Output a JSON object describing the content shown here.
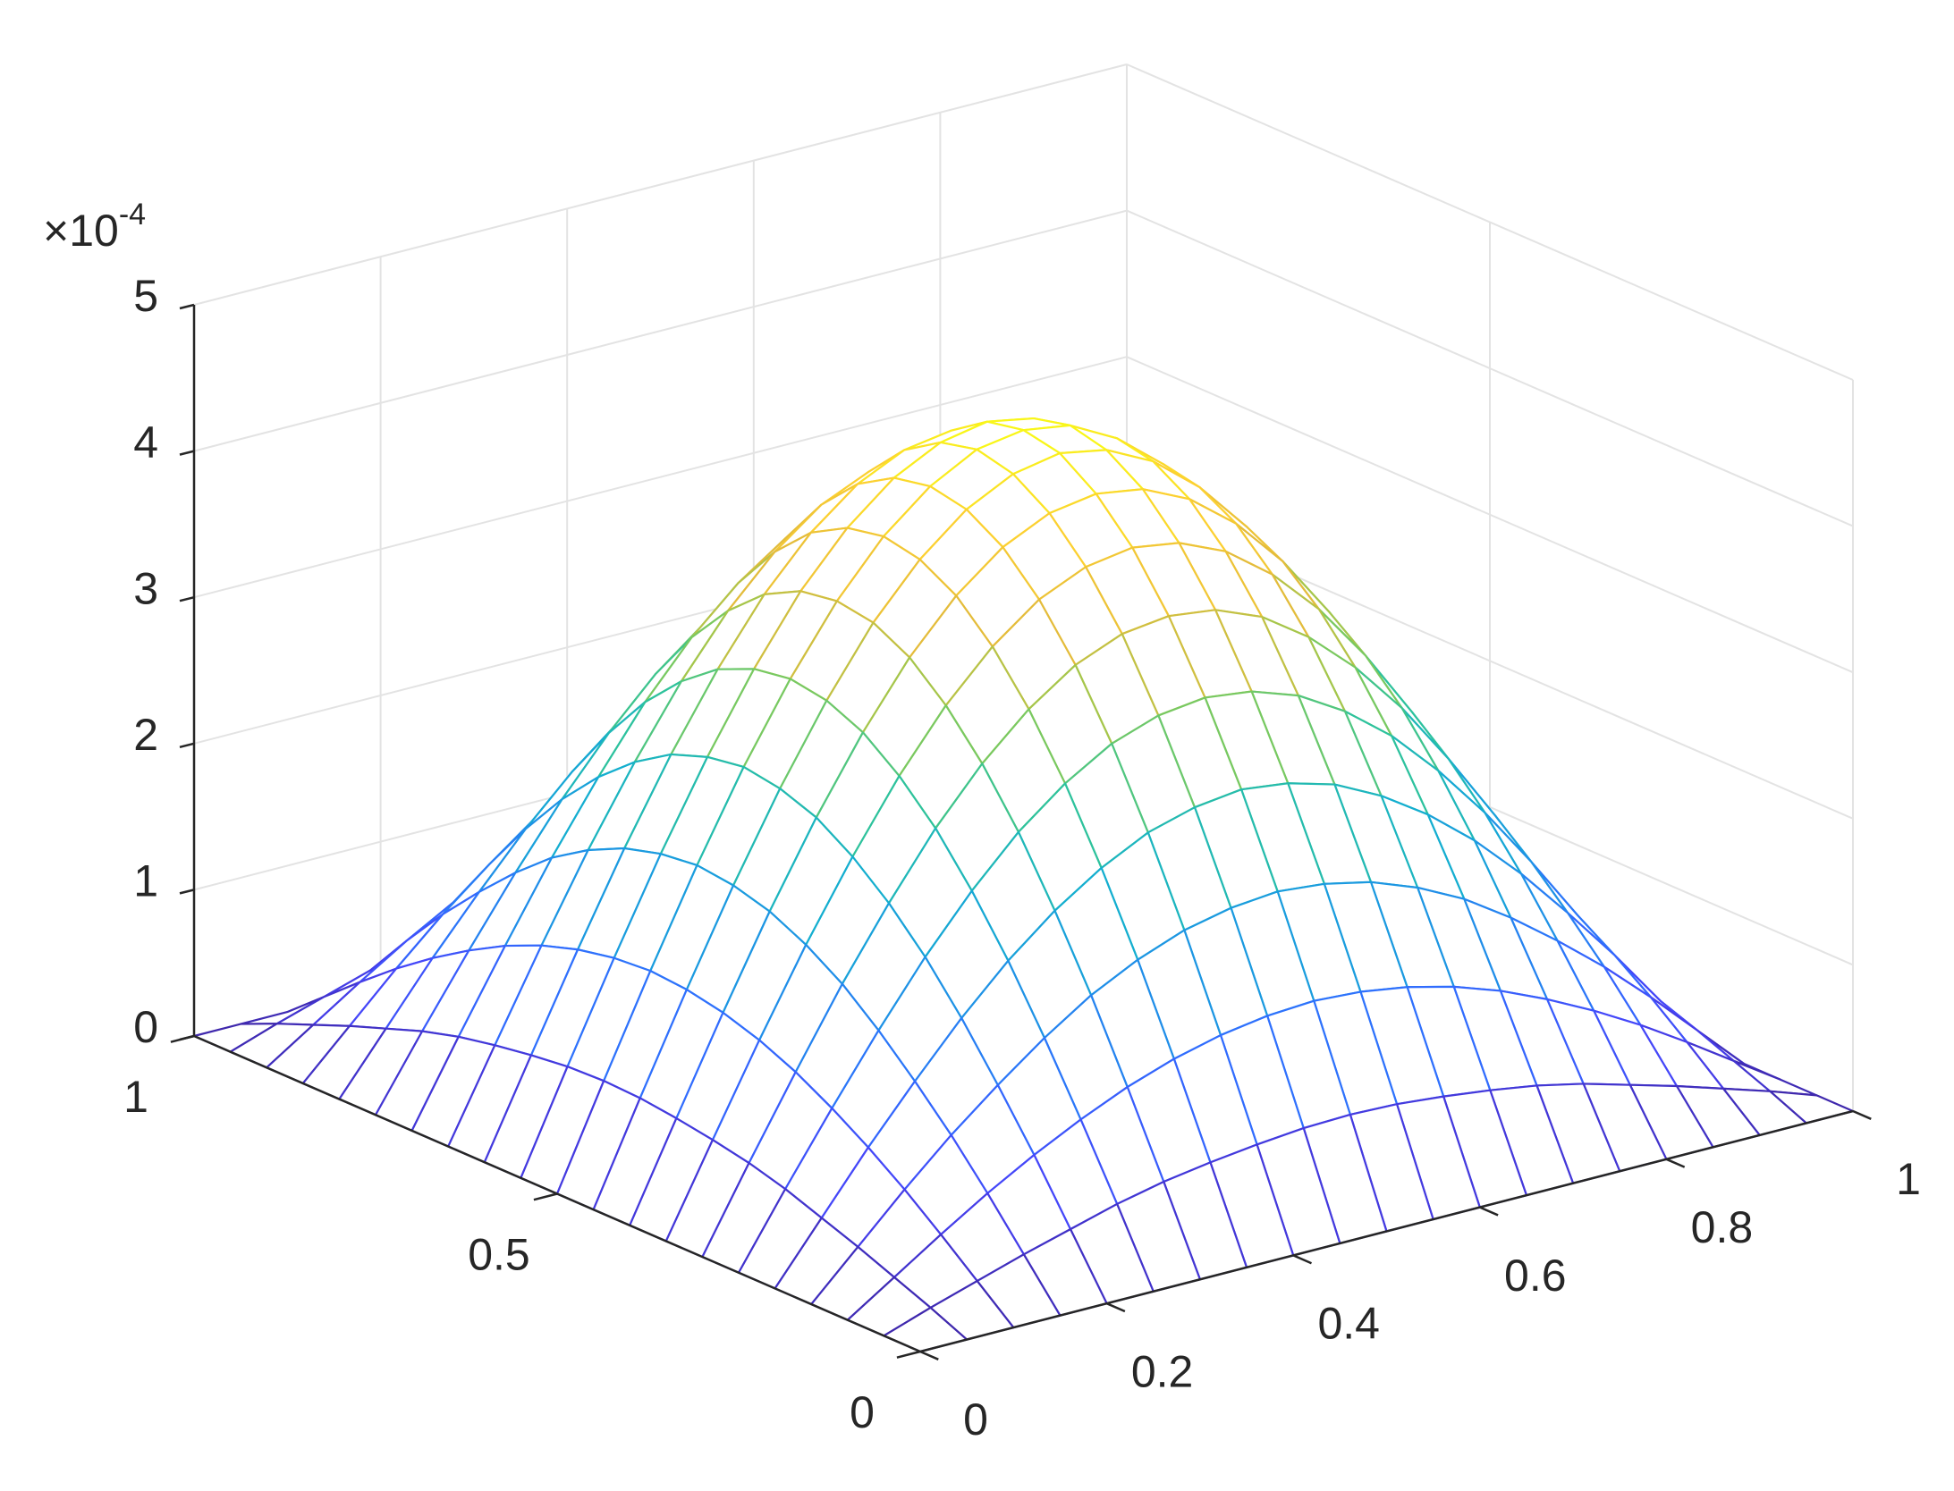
{
  "chart_data": {
    "type": "surface",
    "x": [
      0,
      0.05,
      0.1,
      0.15,
      0.2,
      0.25,
      0.3,
      0.35,
      0.4,
      0.45,
      0.5,
      0.55,
      0.6,
      0.65,
      0.7,
      0.75,
      0.8,
      0.85,
      0.9,
      0.95,
      1
    ],
    "y": [
      0,
      0.05,
      0.1,
      0.15,
      0.2,
      0.25,
      0.3,
      0.35,
      0.4,
      0.45,
      0.5,
      0.55,
      0.6,
      0.65,
      0.7,
      0.75,
      0.8,
      0.85,
      0.9,
      0.95,
      1
    ],
    "z": [
      [
        0,
        0,
        0,
        0,
        0,
        0,
        0,
        0,
        0,
        0,
        0,
        0,
        0,
        0,
        0,
        0,
        0,
        0,
        0,
        0,
        0
      ],
      [
        0,
        0.11,
        0.21,
        0.31,
        0.4,
        0.49,
        0.56,
        0.61,
        0.65,
        0.68,
        0.69,
        0.68,
        0.65,
        0.61,
        0.56,
        0.49,
        0.4,
        0.31,
        0.21,
        0.11,
        0
      ],
      [
        0,
        0.21,
        0.42,
        0.62,
        0.8,
        0.96,
        1.1,
        1.21,
        1.29,
        1.34,
        1.36,
        1.34,
        1.29,
        1.21,
        1.1,
        0.96,
        0.8,
        0.62,
        0.42,
        0.21,
        0
      ],
      [
        0,
        0.31,
        0.62,
        0.91,
        1.17,
        1.41,
        1.62,
        1.78,
        1.9,
        1.97,
        2,
        1.97,
        1.9,
        1.78,
        1.62,
        1.41,
        1.17,
        0.91,
        0.62,
        0.31,
        0
      ],
      [
        0,
        0.4,
        0.8,
        1.17,
        1.52,
        1.83,
        2.09,
        2.3,
        2.46,
        2.55,
        2.59,
        2.55,
        2.46,
        2.3,
        2.09,
        1.83,
        1.52,
        1.17,
        0.8,
        0.4,
        0
      ],
      [
        0,
        0.49,
        0.96,
        1.41,
        1.83,
        2.2,
        2.52,
        2.77,
        2.96,
        3.07,
        3.11,
        3.07,
        2.96,
        2.77,
        2.52,
        2.2,
        1.83,
        1.41,
        0.96,
        0.49,
        0
      ],
      [
        0,
        0.56,
        1.1,
        1.62,
        2.09,
        2.52,
        2.88,
        3.17,
        3.39,
        3.52,
        3.56,
        3.52,
        3.39,
        3.17,
        2.88,
        2.52,
        2.09,
        1.62,
        1.1,
        0.56,
        0
      ],
      [
        0,
        0.61,
        1.21,
        1.78,
        2.3,
        2.77,
        3.17,
        3.49,
        3.73,
        3.87,
        3.92,
        3.87,
        3.73,
        3.49,
        3.17,
        2.77,
        2.3,
        1.78,
        1.21,
        0.61,
        0
      ],
      [
        0,
        0.65,
        1.29,
        1.9,
        2.46,
        2.96,
        3.39,
        3.73,
        3.98,
        4.13,
        4.18,
        4.13,
        3.98,
        3.73,
        3.39,
        2.96,
        2.46,
        1.9,
        1.29,
        0.65,
        0
      ],
      [
        0,
        0.68,
        1.34,
        1.97,
        2.55,
        3.07,
        3.52,
        3.87,
        4.13,
        4.29,
        4.35,
        4.29,
        4.13,
        3.87,
        3.52,
        3.07,
        2.55,
        1.97,
        1.34,
        0.68,
        0
      ],
      [
        0,
        0.69,
        1.36,
        2,
        2.59,
        3.11,
        3.56,
        3.92,
        4.18,
        4.35,
        4.4,
        4.35,
        4.18,
        3.92,
        3.56,
        3.11,
        2.59,
        2,
        1.36,
        0.69,
        0
      ],
      [
        0,
        0.68,
        1.34,
        1.97,
        2.55,
        3.07,
        3.52,
        3.87,
        4.13,
        4.29,
        4.35,
        4.29,
        4.13,
        3.87,
        3.52,
        3.07,
        2.55,
        1.97,
        1.34,
        0.68,
        0
      ],
      [
        0,
        0.65,
        1.29,
        1.9,
        2.46,
        2.96,
        3.39,
        3.73,
        3.98,
        4.13,
        4.18,
        4.13,
        3.98,
        3.73,
        3.39,
        2.96,
        2.46,
        1.9,
        1.29,
        0.65,
        0
      ],
      [
        0,
        0.61,
        1.21,
        1.78,
        2.3,
        2.77,
        3.17,
        3.49,
        3.73,
        3.87,
        3.92,
        3.87,
        3.73,
        3.49,
        3.17,
        2.77,
        2.3,
        1.78,
        1.21,
        0.61,
        0
      ],
      [
        0,
        0.56,
        1.1,
        1.62,
        2.09,
        2.52,
        2.88,
        3.17,
        3.39,
        3.52,
        3.56,
        3.52,
        3.39,
        3.17,
        2.88,
        2.52,
        2.09,
        1.62,
        1.1,
        0.56,
        0
      ],
      [
        0,
        0.49,
        0.96,
        1.41,
        1.83,
        2.2,
        2.52,
        2.77,
        2.96,
        3.07,
        3.11,
        3.07,
        2.96,
        2.77,
        2.52,
        2.2,
        1.83,
        1.41,
        0.96,
        0.49,
        0
      ],
      [
        0,
        0.4,
        0.8,
        1.17,
        1.52,
        1.83,
        2.09,
        2.3,
        2.46,
        2.55,
        2.59,
        2.55,
        2.46,
        2.3,
        2.09,
        1.83,
        1.52,
        1.17,
        0.8,
        0.4,
        0
      ],
      [
        0,
        0.31,
        0.62,
        0.91,
        1.17,
        1.41,
        1.62,
        1.78,
        1.9,
        1.97,
        2,
        1.97,
        1.9,
        1.78,
        1.62,
        1.41,
        1.17,
        0.91,
        0.62,
        0.31,
        0
      ],
      [
        0,
        0.21,
        0.42,
        0.62,
        0.8,
        0.96,
        1.1,
        1.21,
        1.29,
        1.34,
        1.36,
        1.34,
        1.29,
        1.21,
        1.1,
        0.96,
        0.8,
        0.62,
        0.42,
        0.21,
        0
      ],
      [
        0,
        0.11,
        0.21,
        0.31,
        0.4,
        0.49,
        0.56,
        0.61,
        0.65,
        0.68,
        0.69,
        0.68,
        0.65,
        0.61,
        0.56,
        0.49,
        0.4,
        0.31,
        0.21,
        0.11,
        0
      ],
      [
        0,
        0,
        0,
        0,
        0,
        0,
        0,
        0,
        0,
        0,
        0,
        0,
        0,
        0,
        0,
        0,
        0,
        0,
        0,
        0,
        0
      ]
    ],
    "xlim": [
      0,
      1
    ],
    "ylim": [
      0,
      1
    ],
    "zlim": [
      0,
      5
    ],
    "xticks": [
      0,
      0.2,
      0.4,
      0.6,
      0.8,
      1
    ],
    "yticks": [
      0,
      0.5,
      1
    ],
    "zticks": [
      0,
      1,
      2,
      3,
      4,
      5
    ],
    "z_multiplier": "×10",
    "z_multiplier_exponent": "-4",
    "grid": true,
    "colormap": [
      "#3e26a8",
      "#4743f8",
      "#2f6ffe",
      "#1f91e7",
      "#14aed0",
      "#2ec39a",
      "#8ccb52",
      "#e3bb3b",
      "#fccf32",
      "#f9fb15"
    ]
  }
}
